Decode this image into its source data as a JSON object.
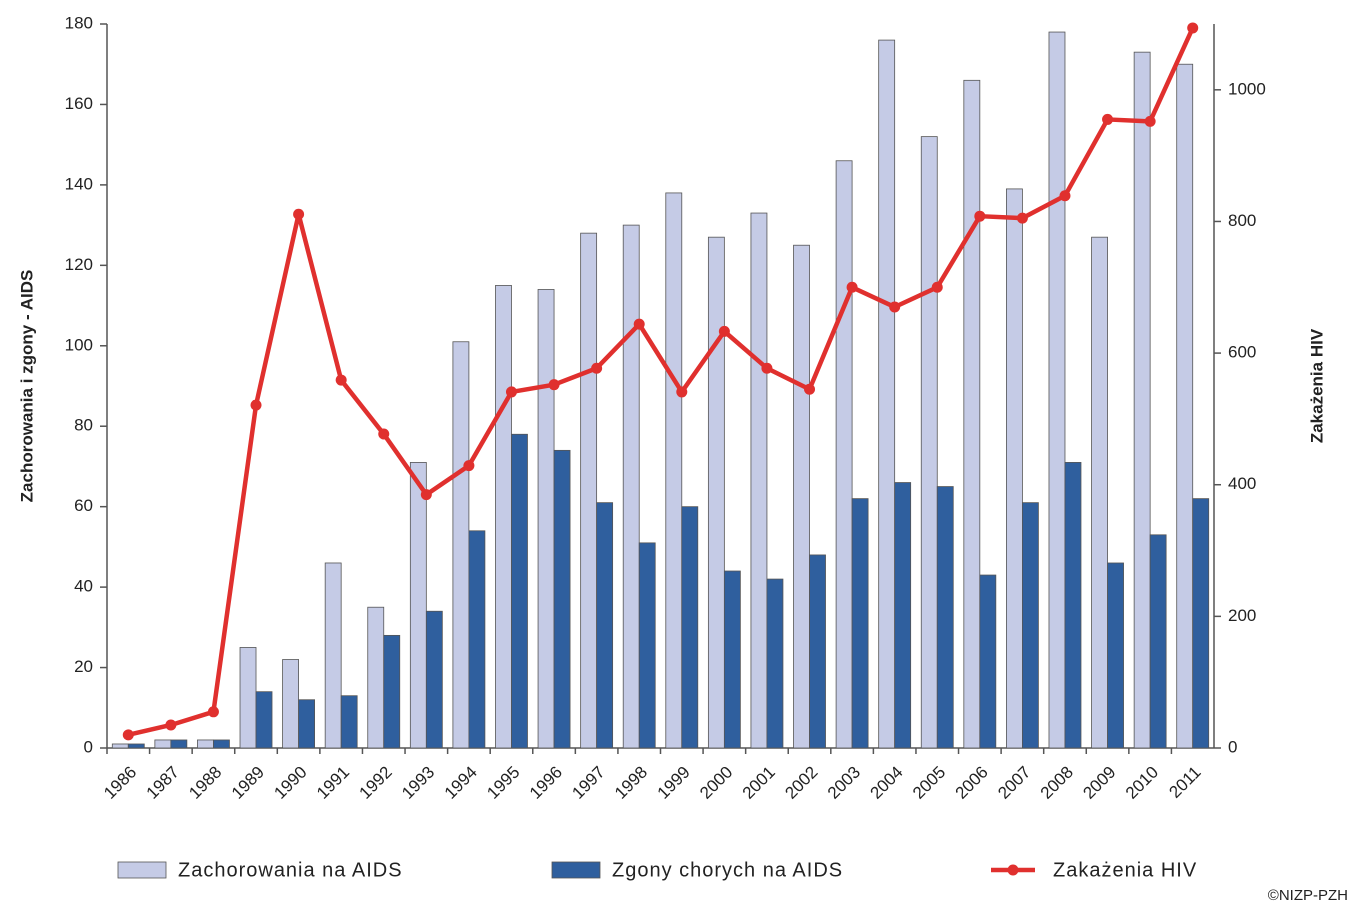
{
  "chart_data": {
    "type": "bar",
    "categories": [
      "1986",
      "1987",
      "1988",
      "1989",
      "1990",
      "1991",
      "1992",
      "1993",
      "1994",
      "1995",
      "1996",
      "1997",
      "1998",
      "1999",
      "2000",
      "2001",
      "2002",
      "2003",
      "2004",
      "2005",
      "2006",
      "2007",
      "2008",
      "2009",
      "2010",
      "2011"
    ],
    "series": [
      {
        "name": "Zachorowania na AIDS",
        "color": "#c5cbe6",
        "type": "bar",
        "values": [
          1,
          2,
          2,
          25,
          22,
          46,
          35,
          71,
          101,
          115,
          114,
          128,
          130,
          138,
          127,
          133,
          125,
          146,
          176,
          152,
          166,
          139,
          178,
          127,
          173,
          170
        ]
      },
      {
        "name": "Zgony chorych na AIDS",
        "color": "#2f5f9e",
        "type": "bar",
        "values": [
          1,
          2,
          2,
          14,
          12,
          13,
          28,
          34,
          54,
          78,
          74,
          61,
          51,
          60,
          44,
          42,
          48,
          62,
          66,
          65,
          43,
          61,
          71,
          46,
          53,
          62
        ]
      },
      {
        "name": "Zakażenia HIV",
        "color": "#e0302e",
        "type": "line",
        "axis": "y2",
        "values": [
          20,
          35,
          55,
          521,
          811,
          559,
          477,
          385,
          429,
          541,
          552,
          577,
          644,
          541,
          633,
          577,
          545,
          700,
          670,
          700,
          808,
          805,
          839,
          955,
          952,
          1094
        ]
      }
    ],
    "ylabel": "Zachorowania i zgony - AIDS",
    "y2label": "Zakażenia HIV",
    "ylim": [
      0,
      180
    ],
    "yticks": [
      0,
      20,
      40,
      60,
      80,
      100,
      120,
      140,
      160,
      180
    ],
    "y2lim": [
      0,
      1100
    ],
    "y2ticks": [
      0,
      200,
      400,
      600,
      800,
      1000
    ],
    "credit": "©NIZP-PZH",
    "grid": false,
    "legend": "bottom"
  }
}
